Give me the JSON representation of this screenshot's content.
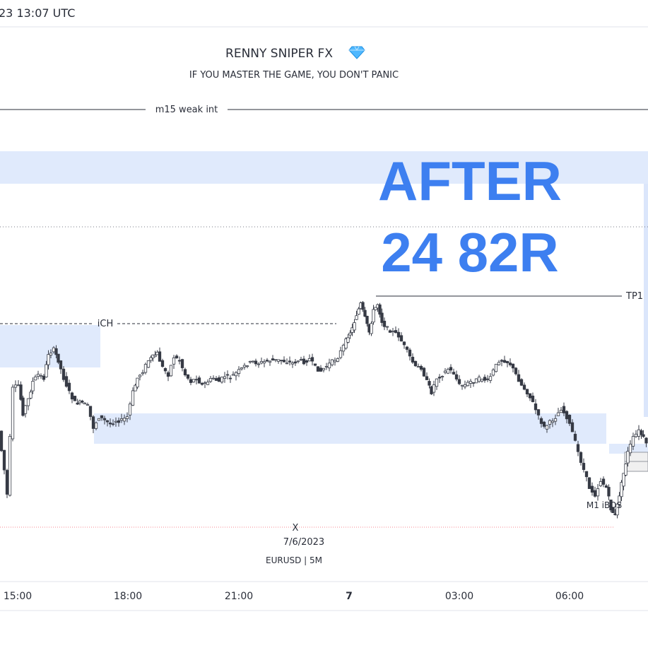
{
  "header": {
    "timestamp": "23 13:07 UTC"
  },
  "watermark": {
    "title": "RENNY SNIPER FX",
    "title_icon": "diamond-icon",
    "subtitle": "IF YOU MASTER THE GAME, YOU DON'T PANIC"
  },
  "overlay": {
    "line1": "AFTER",
    "line2": "24 82R"
  },
  "chart_data": {
    "type": "candlestick",
    "symbol_label": "EURUSD | 5M",
    "crosshair": {
      "marker": "X",
      "date": "7/6/2023"
    },
    "x_ticks": [
      "15:00",
      "18:00",
      "21:00",
      "7",
      "03:00",
      "06:00"
    ],
    "annotations": [
      {
        "label": "m15 weak int",
        "style": "solid"
      },
      {
        "label": "iCH",
        "style": "dashed"
      },
      {
        "label": "TP1",
        "style": "solid"
      },
      {
        "label": "M1 iBOS",
        "style": "text"
      }
    ],
    "price_path": [
      [
        0,
        610
      ],
      [
        8,
        665
      ],
      [
        12,
        700
      ],
      [
        16,
        620
      ],
      [
        20,
        550
      ],
      [
        28,
        545
      ],
      [
        34,
        585
      ],
      [
        42,
        565
      ],
      [
        48,
        540
      ],
      [
        56,
        530
      ],
      [
        64,
        535
      ],
      [
        70,
        500
      ],
      [
        78,
        495
      ],
      [
        84,
        510
      ],
      [
        92,
        535
      ],
      [
        100,
        555
      ],
      [
        108,
        570
      ],
      [
        118,
        570
      ],
      [
        126,
        575
      ],
      [
        134,
        605
      ],
      [
        142,
        590
      ],
      [
        150,
        595
      ],
      [
        158,
        600
      ],
      [
        166,
        595
      ],
      [
        174,
        595
      ],
      [
        182,
        590
      ],
      [
        190,
        555
      ],
      [
        196,
        535
      ],
      [
        204,
        525
      ],
      [
        212,
        510
      ],
      [
        218,
        505
      ],
      [
        224,
        500
      ],
      [
        232,
        520
      ],
      [
        240,
        530
      ],
      [
        248,
        505
      ],
      [
        256,
        510
      ],
      [
        264,
        530
      ],
      [
        272,
        540
      ],
      [
        280,
        535
      ],
      [
        288,
        545
      ],
      [
        296,
        540
      ],
      [
        304,
        535
      ],
      [
        312,
        540
      ],
      [
        320,
        532
      ],
      [
        328,
        534
      ],
      [
        336,
        528
      ],
      [
        344,
        522
      ],
      [
        352,
        515
      ],
      [
        360,
        512
      ],
      [
        368,
        514
      ],
      [
        376,
        512
      ],
      [
        384,
        510
      ],
      [
        392,
        510
      ],
      [
        400,
        510
      ],
      [
        408,
        512
      ],
      [
        416,
        514
      ],
      [
        424,
        510
      ],
      [
        432,
        512
      ],
      [
        440,
        508
      ],
      [
        448,
        520
      ],
      [
        456,
        525
      ],
      [
        464,
        518
      ],
      [
        472,
        512
      ],
      [
        480,
        505
      ],
      [
        488,
        490
      ],
      [
        494,
        475
      ],
      [
        500,
        465
      ],
      [
        506,
        445
      ],
      [
        512,
        430
      ],
      [
        518,
        450
      ],
      [
        524,
        470
      ],
      [
        530,
        440
      ],
      [
        536,
        430
      ],
      [
        542,
        455
      ],
      [
        550,
        465
      ],
      [
        558,
        470
      ],
      [
        566,
        475
      ],
      [
        574,
        490
      ],
      [
        582,
        505
      ],
      [
        590,
        520
      ],
      [
        598,
        520
      ],
      [
        606,
        540
      ],
      [
        612,
        555
      ],
      [
        620,
        535
      ],
      [
        628,
        530
      ],
      [
        636,
        522
      ],
      [
        644,
        528
      ],
      [
        652,
        545
      ],
      [
        660,
        545
      ],
      [
        668,
        540
      ],
      [
        676,
        538
      ],
      [
        684,
        535
      ],
      [
        692,
        540
      ],
      [
        700,
        525
      ],
      [
        708,
        510
      ],
      [
        716,
        510
      ],
      [
        724,
        515
      ],
      [
        732,
        530
      ],
      [
        740,
        545
      ],
      [
        748,
        555
      ],
      [
        756,
        570
      ],
      [
        764,
        590
      ],
      [
        772,
        605
      ],
      [
        780,
        598
      ],
      [
        788,
        590
      ],
      [
        796,
        578
      ],
      [
        804,
        590
      ],
      [
        812,
        612
      ],
      [
        820,
        640
      ],
      [
        828,
        665
      ],
      [
        836,
        690
      ],
      [
        844,
        700
      ],
      [
        852,
        680
      ],
      [
        860,
        690
      ],
      [
        866,
        720
      ],
      [
        872,
        730
      ],
      [
        878,
        700
      ],
      [
        884,
        670
      ],
      [
        890,
        640
      ],
      [
        898,
        620
      ],
      [
        906,
        610
      ],
      [
        912,
        620
      ],
      [
        917,
        630
      ]
    ]
  }
}
